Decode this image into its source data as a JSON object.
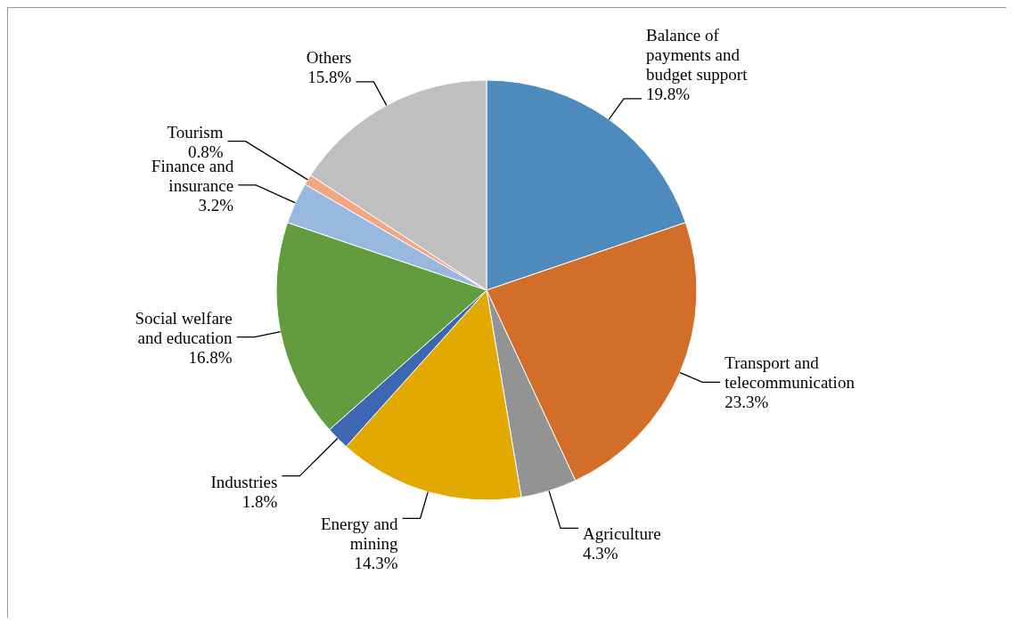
{
  "chart_data": {
    "type": "pie",
    "categories": [
      "Balance of payments and budget support",
      "Transport and telecommunication",
      "Agriculture",
      "Energy and mining",
      "Industries",
      "Social welfare and education",
      "Finance and insurance",
      "Tourism",
      "Others"
    ],
    "values": [
      19.8,
      23.3,
      4.3,
      14.3,
      1.8,
      16.8,
      3.2,
      0.8,
      15.8
    ],
    "value_labels": [
      "19.8%",
      "23.3%",
      "4.3%",
      "14.3%",
      "1.8%",
      "16.8%",
      "3.2%",
      "0.8%",
      "15.8%"
    ],
    "colors": [
      "#4f8abd",
      "#d26e2a",
      "#939393",
      "#e2aa00",
      "#3d66b3",
      "#629c3e",
      "#98b8e0",
      "#f2a684",
      "#bfbfbf"
    ],
    "legend": false
  }
}
